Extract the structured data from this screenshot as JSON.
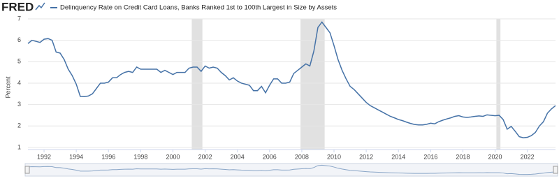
{
  "logo": "FRED",
  "chart_data": {
    "type": "line",
    "title": "Delinquency Rate on Credit Card Loans, Banks Ranked 1st to 100th Largest in Size by Assets",
    "y_label": "Percent",
    "x": [
      1991,
      1991.25,
      1991.5,
      1991.75,
      1992,
      1992.25,
      1992.5,
      1992.75,
      1993,
      1993.25,
      1993.5,
      1993.75,
      1994,
      1994.25,
      1994.5,
      1994.75,
      1995,
      1995.25,
      1995.5,
      1995.75,
      1996,
      1996.25,
      1996.5,
      1996.75,
      1997,
      1997.25,
      1997.5,
      1997.75,
      1998,
      1998.25,
      1998.5,
      1998.75,
      1999,
      1999.25,
      1999.5,
      1999.75,
      2000,
      2000.25,
      2000.5,
      2000.75,
      2001,
      2001.25,
      2001.5,
      2001.75,
      2002,
      2002.25,
      2002.5,
      2002.75,
      2003,
      2003.25,
      2003.5,
      2003.75,
      2004,
      2004.25,
      2004.5,
      2004.75,
      2005,
      2005.25,
      2005.5,
      2005.75,
      2006,
      2006.25,
      2006.5,
      2006.75,
      2007,
      2007.25,
      2007.5,
      2007.75,
      2008,
      2008.25,
      2008.5,
      2008.75,
      2009,
      2009.25,
      2009.5,
      2009.75,
      2010,
      2010.25,
      2010.5,
      2010.75,
      2011,
      2011.25,
      2011.5,
      2011.75,
      2012,
      2012.25,
      2012.5,
      2012.75,
      2013,
      2013.25,
      2013.5,
      2013.75,
      2014,
      2014.25,
      2014.5,
      2014.75,
      2015,
      2015.25,
      2015.5,
      2015.75,
      2016,
      2016.25,
      2016.5,
      2016.75,
      2017,
      2017.25,
      2017.5,
      2017.75,
      2018,
      2018.25,
      2018.5,
      2018.75,
      2019,
      2019.25,
      2019.5,
      2019.75,
      2020,
      2020.25,
      2020.5,
      2020.75,
      2021,
      2021.25,
      2021.5,
      2021.75,
      2022,
      2022.25,
      2022.5,
      2022.75,
      2023,
      2023.25,
      2023.5,
      2023.75
    ],
    "series": [
      {
        "name": "Delinquency Rate on Credit Card Loans, Banks Ranked 1st to 100th Largest in Size by Assets",
        "color": "#4572a7",
        "values": [
          5.85,
          6.0,
          5.95,
          5.9,
          6.05,
          6.08,
          6.0,
          5.45,
          5.4,
          5.1,
          4.65,
          4.35,
          3.95,
          3.38,
          3.37,
          3.4,
          3.5,
          3.75,
          4.0,
          4.0,
          4.05,
          4.25,
          4.25,
          4.4,
          4.5,
          4.55,
          4.5,
          4.75,
          4.65,
          4.65,
          4.65,
          4.65,
          4.65,
          4.5,
          4.6,
          4.5,
          4.4,
          4.5,
          4.5,
          4.5,
          4.7,
          4.75,
          4.75,
          4.55,
          4.8,
          4.7,
          4.75,
          4.7,
          4.5,
          4.35,
          4.15,
          4.25,
          4.1,
          4.0,
          3.95,
          3.9,
          3.65,
          3.65,
          3.85,
          3.55,
          3.9,
          4.2,
          4.2,
          4.0,
          4.0,
          4.05,
          4.45,
          4.6,
          4.75,
          4.9,
          4.8,
          5.5,
          6.6,
          6.85,
          6.6,
          6.35,
          5.75,
          5.1,
          4.6,
          4.2,
          3.85,
          3.7,
          3.5,
          3.3,
          3.1,
          2.95,
          2.85,
          2.75,
          2.65,
          2.55,
          2.45,
          2.38,
          2.3,
          2.25,
          2.18,
          2.12,
          2.07,
          2.05,
          2.05,
          2.08,
          2.13,
          2.1,
          2.2,
          2.27,
          2.33,
          2.38,
          2.45,
          2.48,
          2.42,
          2.4,
          2.42,
          2.45,
          2.47,
          2.45,
          2.52,
          2.5,
          2.48,
          2.5,
          2.3,
          1.85,
          1.98,
          1.75,
          1.5,
          1.45,
          1.47,
          1.55,
          1.7,
          2.0,
          2.2,
          2.6,
          2.8,
          2.95
        ]
      }
    ],
    "shaded_periods": [
      [
        2001.17,
        2001.83
      ],
      [
        2007.92,
        2009.42
      ],
      [
        2020.08,
        2020.33
      ]
    ],
    "shade_color": "#e1e1e1",
    "xlim": [
      1991,
      2023.75
    ],
    "xticks": [
      1992,
      1994,
      1996,
      1998,
      2000,
      2002,
      2004,
      2006,
      2008,
      2010,
      2012,
      2014,
      2016,
      2018,
      2020,
      2022
    ],
    "ylim": [
      0.9,
      7
    ],
    "yticks": [
      1,
      2,
      3,
      4,
      5,
      6,
      7
    ],
    "grid": true
  }
}
